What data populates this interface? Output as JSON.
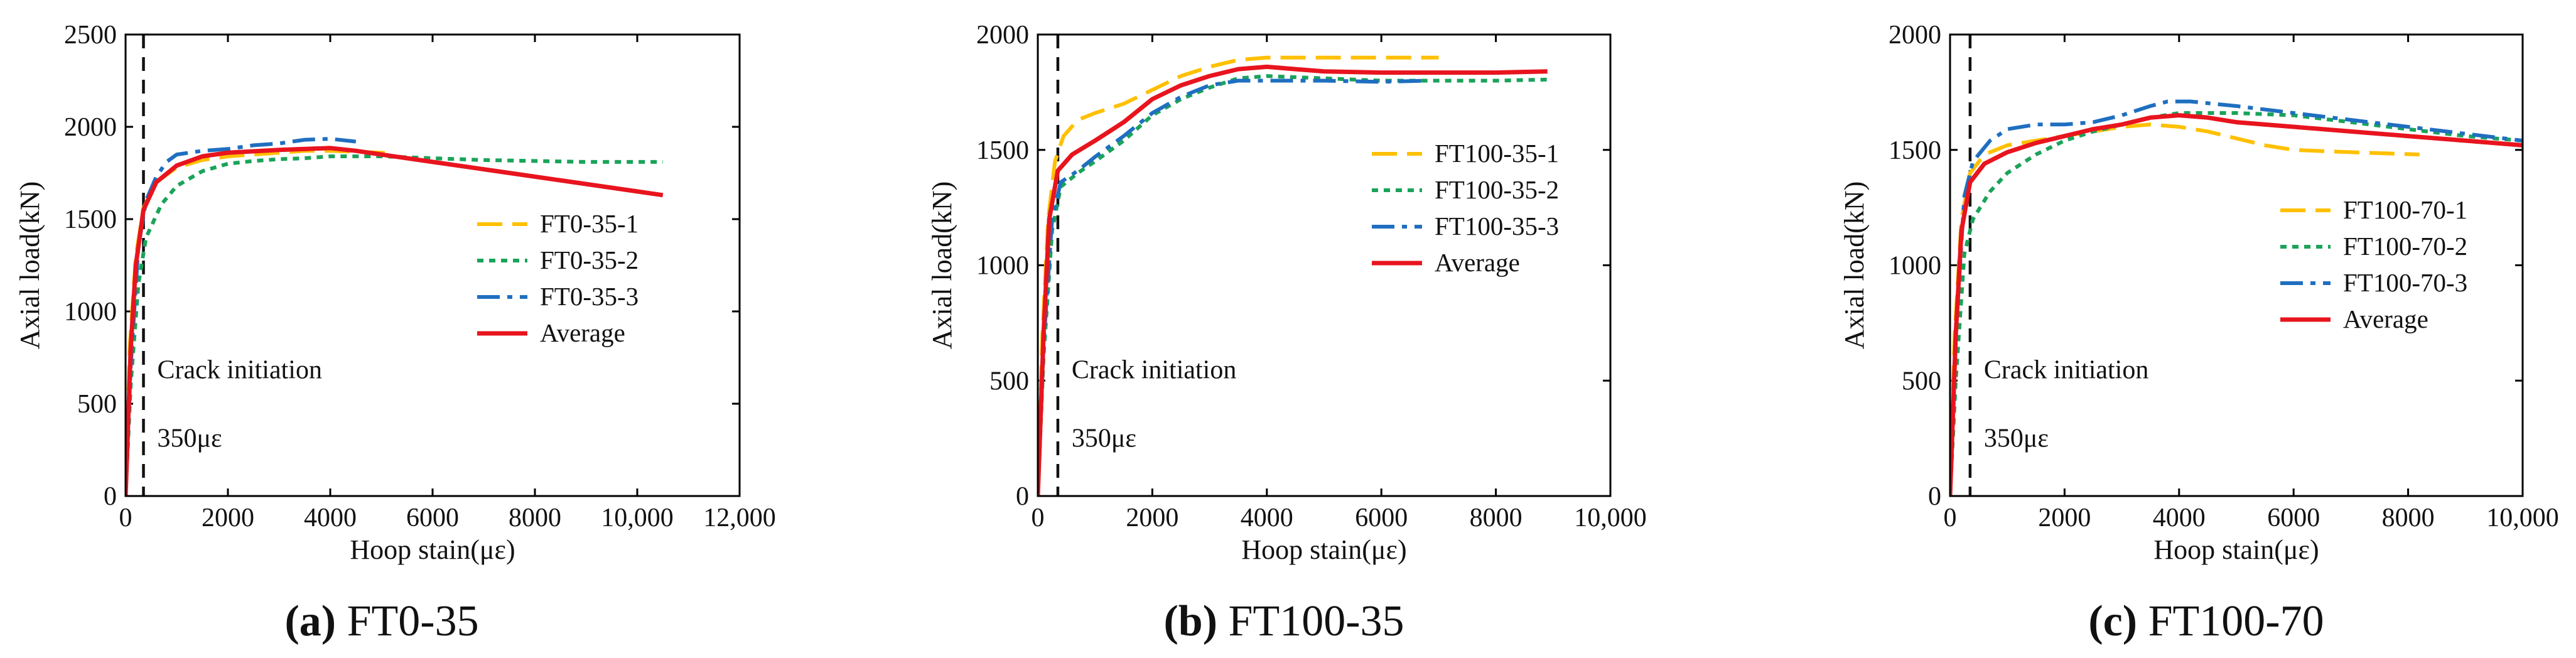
{
  "chart_data": [
    {
      "type": "line",
      "panel": "a",
      "caption_letter": "(a)",
      "caption_name": "FT0-35",
      "xlabel": "Hoop stain(με)",
      "ylabel": "Axial load(kN)",
      "xlim": [
        0,
        12000
      ],
      "ylim": [
        0,
        2500
      ],
      "xticks": [
        0,
        2000,
        4000,
        6000,
        8000,
        10000,
        12000
      ],
      "xtick_labels": [
        "0",
        "2000",
        "4000",
        "6000",
        "8000",
        "10,000",
        "12,000"
      ],
      "yticks": [
        0,
        500,
        1000,
        1500,
        2000,
        2500
      ],
      "ytick_labels": [
        "0",
        "500",
        "1000",
        "1500",
        "2000",
        "2500"
      ],
      "crack_line_x": 350,
      "crack_label": "Crack initiation",
      "crack_value_label": "350με",
      "series": [
        {
          "name": "FT0-35-1",
          "color": "#FFC000",
          "style": "dash",
          "x": [
            0,
            80,
            200,
            350,
            600,
            1000,
            1500,
            2000,
            2500,
            3000,
            3500,
            4000,
            4500,
            5000,
            5200
          ],
          "y": [
            0,
            800,
            1300,
            1560,
            1700,
            1780,
            1820,
            1840,
            1850,
            1860,
            1870,
            1870,
            1865,
            1860,
            1855
          ]
        },
        {
          "name": "FT0-35-2",
          "color": "#1AA35A",
          "style": "dot",
          "x": [
            0,
            100,
            250,
            400,
            700,
            1000,
            1500,
            2000,
            2500,
            3000,
            3500,
            4000,
            4500,
            5000,
            6000,
            7000,
            8000,
            9000,
            10500
          ],
          "y": [
            0,
            600,
            1150,
            1400,
            1580,
            1680,
            1760,
            1800,
            1815,
            1825,
            1830,
            1840,
            1840,
            1840,
            1830,
            1820,
            1815,
            1810,
            1810
          ]
        },
        {
          "name": "FT0-35-3",
          "color": "#1F6FC0",
          "style": "dashdot",
          "x": [
            0,
            100,
            250,
            400,
            600,
            800,
            1000,
            1500,
            2000,
            2500,
            3000,
            3500,
            4000,
            4500
          ],
          "y": [
            0,
            700,
            1350,
            1600,
            1730,
            1810,
            1850,
            1870,
            1880,
            1900,
            1910,
            1930,
            1935,
            1920
          ]
        },
        {
          "name": "Average",
          "color": "#E8141E",
          "style": "solid",
          "x": [
            0,
            100,
            200,
            350,
            600,
            1000,
            1500,
            2000,
            3000,
            4000,
            4500,
            5000,
            6000,
            7000,
            8000,
            9000,
            10500
          ],
          "y": [
            0,
            800,
            1250,
            1550,
            1700,
            1790,
            1840,
            1860,
            1875,
            1885,
            1870,
            1850,
            1810,
            1770,
            1730,
            1690,
            1630
          ]
        }
      ]
    },
    {
      "type": "line",
      "panel": "b",
      "caption_letter": "(b)",
      "caption_name": "FT100-35",
      "xlabel": "Hoop stain(με)",
      "ylabel": "Axial load(kN)",
      "xlim": [
        0,
        10000
      ],
      "ylim": [
        0,
        2000
      ],
      "xticks": [
        0,
        2000,
        4000,
        6000,
        8000,
        10000
      ],
      "xtick_labels": [
        "0",
        "2000",
        "4000",
        "6000",
        "8000",
        "10,000"
      ],
      "yticks": [
        0,
        500,
        1000,
        1500,
        2000
      ],
      "ytick_labels": [
        "0",
        "500",
        "1000",
        "1500",
        "2000"
      ],
      "crack_line_x": 350,
      "crack_label": "Crack initiation",
      "crack_value_label": "350με",
      "series": [
        {
          "name": "FT100-35-1",
          "color": "#FFC000",
          "style": "dash",
          "x": [
            0,
            80,
            180,
            300,
            450,
            700,
            1000,
            1500,
            2000,
            2500,
            3000,
            3500,
            4000,
            4500,
            5000,
            5500,
            6000,
            6500,
            7000
          ],
          "y": [
            0,
            700,
            1200,
            1450,
            1560,
            1630,
            1660,
            1700,
            1760,
            1820,
            1860,
            1890,
            1900,
            1900,
            1900,
            1900,
            1900,
            1900,
            1900
          ]
        },
        {
          "name": "FT100-35-2",
          "color": "#1AA35A",
          "style": "dot",
          "x": [
            0,
            100,
            250,
            400,
            700,
            1000,
            1500,
            2000,
            2500,
            3000,
            3500,
            4000,
            5000,
            6000,
            7000,
            8000,
            8900
          ],
          "y": [
            0,
            600,
            1150,
            1340,
            1400,
            1450,
            1540,
            1650,
            1720,
            1770,
            1810,
            1820,
            1810,
            1800,
            1800,
            1800,
            1805
          ]
        },
        {
          "name": "FT100-35-3",
          "color": "#1F6FC0",
          "style": "dashdot",
          "x": [
            0,
            100,
            250,
            400,
            700,
            1000,
            1500,
            2000,
            2500,
            3000,
            3500,
            4000,
            5000,
            6000,
            6800
          ],
          "y": [
            0,
            650,
            1200,
            1360,
            1410,
            1470,
            1560,
            1660,
            1730,
            1780,
            1800,
            1800,
            1800,
            1795,
            1800
          ]
        },
        {
          "name": "Average",
          "color": "#E8141E",
          "style": "solid",
          "x": [
            0,
            100,
            200,
            350,
            600,
            1000,
            1500,
            2000,
            2500,
            3000,
            3500,
            4000,
            4500,
            5000,
            6000,
            7000,
            8000,
            8900
          ],
          "y": [
            0,
            700,
            1200,
            1410,
            1480,
            1540,
            1620,
            1720,
            1780,
            1820,
            1850,
            1860,
            1850,
            1840,
            1835,
            1835,
            1835,
            1840
          ]
        }
      ]
    },
    {
      "type": "line",
      "panel": "c",
      "caption_letter": "(c)",
      "caption_name": "FT100-70",
      "xlabel": "Hoop stain(με)",
      "ylabel": "Axial load(kN)",
      "xlim": [
        0,
        10000
      ],
      "ylim": [
        0,
        2000
      ],
      "xticks": [
        0,
        2000,
        4000,
        6000,
        8000,
        10000
      ],
      "xtick_labels": [
        "0",
        "2000",
        "4000",
        "6000",
        "8000",
        "10,000"
      ],
      "yticks": [
        0,
        500,
        1000,
        1500,
        2000
      ],
      "ytick_labels": [
        "0",
        "500",
        "1000",
        "1500",
        "2000"
      ],
      "crack_line_x": 350,
      "crack_label": "Crack initiation",
      "crack_value_label": "350με",
      "series": [
        {
          "name": "FT100-70-1",
          "color": "#FFC000",
          "style": "dash",
          "x": [
            0,
            80,
            200,
            350,
            600,
            1000,
            1500,
            2000,
            2500,
            3000,
            3500,
            4000,
            4500,
            5000,
            5500,
            6000,
            7000,
            8200
          ],
          "y": [
            0,
            700,
            1200,
            1400,
            1480,
            1520,
            1540,
            1560,
            1580,
            1600,
            1610,
            1600,
            1580,
            1550,
            1520,
            1500,
            1490,
            1480
          ]
        },
        {
          "name": "FT100-70-2",
          "color": "#1AA35A",
          "style": "dot",
          "x": [
            0,
            100,
            250,
            400,
            700,
            1000,
            1500,
            2000,
            2500,
            3000,
            3500,
            4000,
            4500,
            5000,
            6000,
            7000,
            8000,
            9000,
            10000
          ],
          "y": [
            0,
            500,
            1050,
            1200,
            1320,
            1400,
            1480,
            1540,
            1580,
            1610,
            1640,
            1660,
            1660,
            1660,
            1650,
            1620,
            1590,
            1560,
            1540
          ]
        },
        {
          "name": "FT100-70-3",
          "color": "#1F6FC0",
          "style": "dashdot",
          "x": [
            0,
            100,
            250,
            400,
            700,
            1000,
            1500,
            2000,
            2500,
            3000,
            3500,
            3800,
            4200,
            4600,
            5000,
            6000,
            7000,
            8000,
            9000,
            10000
          ],
          "y": [
            0,
            700,
            1300,
            1450,
            1540,
            1590,
            1610,
            1610,
            1620,
            1650,
            1690,
            1710,
            1710,
            1700,
            1690,
            1660,
            1630,
            1600,
            1570,
            1540
          ]
        },
        {
          "name": "Average",
          "color": "#E8141E",
          "style": "solid",
          "x": [
            0,
            100,
            200,
            350,
            600,
            1000,
            1500,
            2000,
            2500,
            3000,
            3500,
            4000,
            4500,
            5000,
            6000,
            7000,
            8000,
            9000,
            10000
          ],
          "y": [
            0,
            700,
            1150,
            1360,
            1440,
            1490,
            1530,
            1560,
            1590,
            1610,
            1640,
            1650,
            1640,
            1620,
            1600,
            1580,
            1560,
            1540,
            1520
          ]
        }
      ]
    }
  ]
}
